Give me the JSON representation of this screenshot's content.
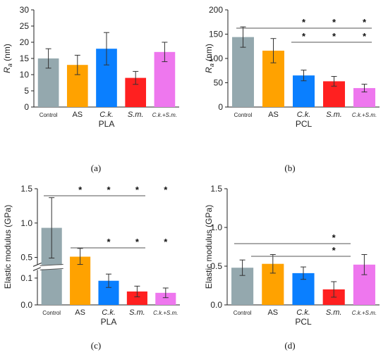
{
  "chart_data": [
    {
      "type": "bar",
      "panel_label": "(a)",
      "xlabel": "PLA",
      "ylabel_symbol": "R",
      "ylabel_sub": "a",
      "ylabel_rest": " (nm)",
      "categories": [
        "Control",
        "AS",
        "C.k.",
        "S.m.",
        "C.k.+S.m."
      ],
      "values": [
        15,
        13,
        18,
        9,
        17
      ],
      "errors": [
        3,
        3,
        5,
        2,
        3
      ],
      "colors": [
        "#94a8ae",
        "#ffa200",
        "#0a7fff",
        "#ff2020",
        "#ee77ee"
      ],
      "ylim": [
        0,
        30
      ],
      "yticks": [
        "0",
        "5",
        "10",
        "15",
        "20",
        "25",
        "30"
      ],
      "stars": []
    },
    {
      "type": "bar",
      "panel_label": "(b)",
      "xlabel": "PCL",
      "ylabel_symbol": "R",
      "ylabel_sub": "a",
      "ylabel_rest": " (nm)",
      "categories": [
        "Control",
        "AS",
        "C.k.",
        "S.m.",
        "C.k.+S.m."
      ],
      "values": [
        144,
        116,
        65,
        53,
        39
      ],
      "errors": [
        21,
        25,
        11,
        10,
        8
      ],
      "colors": [
        "#94a8ae",
        "#ffa200",
        "#0a7fff",
        "#ff2020",
        "#ee77ee"
      ],
      "ylim": [
        0,
        200
      ],
      "yticks": [
        "0",
        "50",
        "100",
        "150",
        "200"
      ],
      "stars": [
        "*",
        "*",
        "*",
        "*",
        "*",
        "*"
      ]
    },
    {
      "type": "bar",
      "panel_label": "(c)",
      "xlabel": "PLA",
      "ylabel": "Elastic modulus (GPa)",
      "categories": [
        "Control",
        "AS",
        "C.k.",
        "S.m.",
        "C.k.+S.m."
      ],
      "values": [
        0.93,
        0.51,
        0.09,
        0.05,
        0.045
      ],
      "errors": [
        0.44,
        0.12,
        0.025,
        0.02,
        0.018
      ],
      "colors": [
        "#94a8ae",
        "#ffa200",
        "#0a7fff",
        "#ff2020",
        "#ee77ee"
      ],
      "axis_break": [
        0.13,
        0.4
      ],
      "yticks": [
        "0.0",
        "0.1",
        "0.5",
        "1.0",
        "1.5"
      ],
      "stars": [
        "*",
        "*",
        "*",
        "*",
        "*",
        "*",
        "*"
      ]
    },
    {
      "type": "bar",
      "panel_label": "(d)",
      "xlabel": "PCL",
      "ylabel": "Elastic modulus (GPa)",
      "categories": [
        "Control",
        "AS",
        "C.k.",
        "S.m.",
        "C.k.+S.m."
      ],
      "values": [
        0.48,
        0.53,
        0.41,
        0.2,
        0.52
      ],
      "errors": [
        0.1,
        0.12,
        0.08,
        0.1,
        0.13
      ],
      "colors": [
        "#94a8ae",
        "#ffa200",
        "#0a7fff",
        "#ff2020",
        "#ee77ee"
      ],
      "ylim": [
        0,
        1.5
      ],
      "yticks": [
        "0.0",
        "0.5",
        "1.0",
        "1.5"
      ],
      "stars": [
        "*",
        "*"
      ]
    }
  ]
}
